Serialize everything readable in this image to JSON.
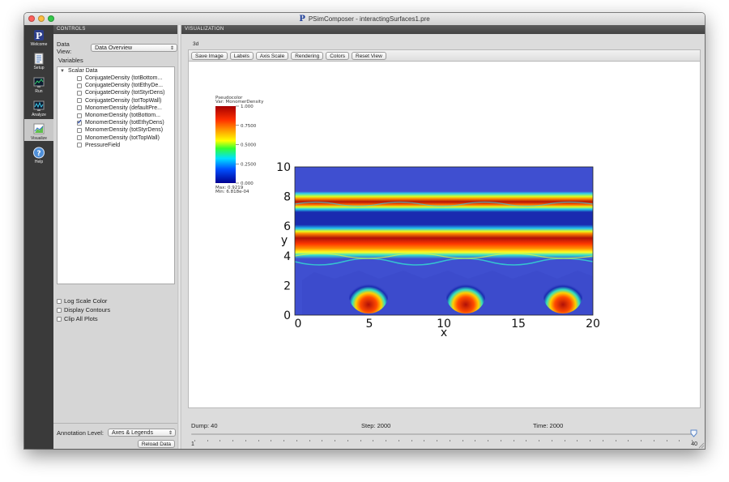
{
  "window": {
    "title": "PSimComposer - interactingSurfaces1.pre",
    "app_badge": "P",
    "colors": {
      "close": "#fc605b",
      "minimize": "#fdbc40",
      "zoom": "#34c84a",
      "sidebar": "#3a3a3a",
      "panel_header": "#4a4a4a"
    }
  },
  "sidebar": {
    "items": [
      {
        "label": "Welcome",
        "icon": "p-logo-icon",
        "active": false
      },
      {
        "label": "Setup",
        "icon": "document-icon",
        "active": false
      },
      {
        "label": "Run",
        "icon": "run-monitor-icon",
        "active": false
      },
      {
        "label": "Analyze",
        "icon": "analyze-monitor-icon",
        "active": false
      },
      {
        "label": "Visualize",
        "icon": "visualize-chart-icon",
        "active": true
      },
      {
        "label": "Help",
        "icon": "help-question-icon",
        "active": false
      }
    ]
  },
  "controls": {
    "header": "CONTROLS",
    "data_view_label": "Data View:",
    "data_view_value": "Data Overview",
    "variables_label": "Variables",
    "tree_group": "Scalar Data",
    "variables": [
      {
        "label": "ConjugateDensity (totBottom...",
        "checked": false
      },
      {
        "label": "ConjugateDensity (totEthyDe...",
        "checked": false
      },
      {
        "label": "ConjugateDensity (totStyrDens)",
        "checked": false
      },
      {
        "label": "ConjugateDensity (totTopWall)",
        "checked": false
      },
      {
        "label": "MonomerDensity (defaultPre...",
        "checked": false
      },
      {
        "label": "MonomerDensity (totBottom...",
        "checked": false
      },
      {
        "label": "MonomerDensity (totEthyDens)",
        "checked": true
      },
      {
        "label": "MonomerDensity (totStyrDens)",
        "checked": false
      },
      {
        "label": "MonomerDensity (totTopWall)",
        "checked": false
      },
      {
        "label": "PressureField",
        "checked": false
      }
    ],
    "options": [
      "Log Scale Color",
      "Display Contours",
      "Clip All Plots"
    ],
    "annotation_label": "Annotation Level:",
    "annotation_value": "Axes & Legends",
    "reload_label": "Reload Data"
  },
  "viz": {
    "header": "VISUALIZATION",
    "frame_label": "3d",
    "toolbar": [
      "Save Image",
      "Labels",
      "Axis Scale",
      "Rendering",
      "Colors",
      "Reset View"
    ],
    "legend": {
      "title": "Pseudocolor",
      "var": "Var: MonomerDensity",
      "ticks": [
        "1.000",
        "0.7500",
        "0.5000",
        "0.2500",
        "0.000"
      ],
      "max": "Max: 0.9219",
      "min": "Min: 6.818e-04"
    },
    "plot": {
      "x_label": "x",
      "y_label": "y",
      "x_ticks": [
        "0",
        "5",
        "10",
        "15",
        "20"
      ],
      "y_ticks": [
        "0",
        "2",
        "4",
        "6",
        "8",
        "10"
      ]
    }
  },
  "bottom": {
    "dump": "Dump: 40",
    "step": "Step: 2000",
    "time": "Time: 2000",
    "slider_min": "1",
    "slider_max": "40",
    "slider_value": 40
  }
}
